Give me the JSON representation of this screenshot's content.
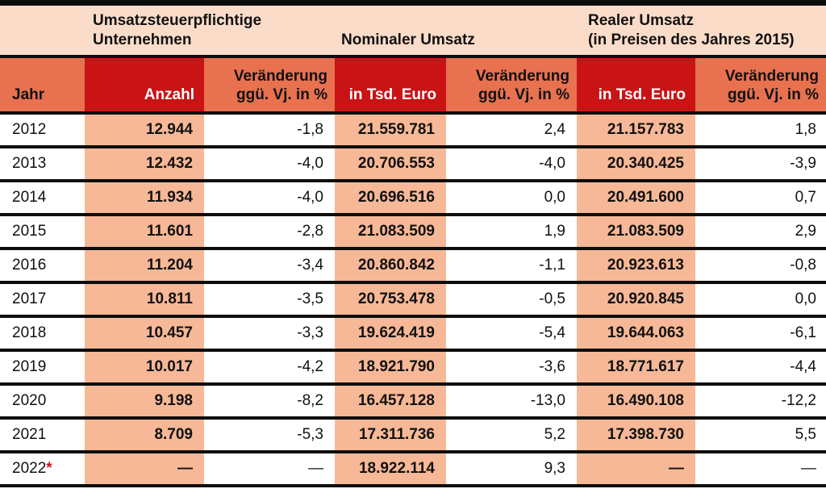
{
  "colors": {
    "band_peach": "#fbdcc9",
    "header_salmon": "#e8714f",
    "header_red": "#c91315",
    "highlight_salmon": "#f6b896",
    "rule_black": "#0d0d0d",
    "text_black": "#111111",
    "text_white": "#ffffff",
    "asterisk_red": "#c91315"
  },
  "chart_data": {
    "type": "table",
    "group_headers": [
      "Umsatzsteuerpflichtige\nUnternehmen",
      "Nominaler Umsatz",
      "Realer Umsatz\n(in Preisen des Jahres 2015)"
    ],
    "columns": [
      "Jahr",
      "Anzahl",
      "Veränderung\nggü. Vj. in %",
      "in Tsd. Euro",
      "Veränderung\nggü. Vj. in %",
      "in Tsd. Euro",
      "Veränderung\nggü. Vj. in %"
    ],
    "rows": [
      {
        "jahr": "2012",
        "marker": "",
        "anzahl": "12.944",
        "anzahl_vj": "-1,8",
        "nominal": "21.559.781",
        "nominal_vj": "2,4",
        "real": "21.157.783",
        "real_vj": "1,8"
      },
      {
        "jahr": "2013",
        "marker": "",
        "anzahl": "12.432",
        "anzahl_vj": "-4,0",
        "nominal": "20.706.553",
        "nominal_vj": "-4,0",
        "real": "20.340.425",
        "real_vj": "-3,9"
      },
      {
        "jahr": "2014",
        "marker": "",
        "anzahl": "11.934",
        "anzahl_vj": "-4,0",
        "nominal": "20.696.516",
        "nominal_vj": "0,0",
        "real": "20.491.600",
        "real_vj": "0,7"
      },
      {
        "jahr": "2015",
        "marker": "",
        "anzahl": "11.601",
        "anzahl_vj": "-2,8",
        "nominal": "21.083.509",
        "nominal_vj": "1,9",
        "real": "21.083.509",
        "real_vj": "2,9"
      },
      {
        "jahr": "2016",
        "marker": "",
        "anzahl": "11.204",
        "anzahl_vj": "-3,4",
        "nominal": "20.860.842",
        "nominal_vj": "-1,1",
        "real": "20.923.613",
        "real_vj": "-0,8"
      },
      {
        "jahr": "2017",
        "marker": "",
        "anzahl": "10.811",
        "anzahl_vj": "-3,5",
        "nominal": "20.753.478",
        "nominal_vj": "-0,5",
        "real": "20.920.845",
        "real_vj": "0,0"
      },
      {
        "jahr": "2018",
        "marker": "",
        "anzahl": "10.457",
        "anzahl_vj": "-3,3",
        "nominal": "19.624.419",
        "nominal_vj": "-5,4",
        "real": "19.644.063",
        "real_vj": "-6,1"
      },
      {
        "jahr": "2019",
        "marker": "",
        "anzahl": "10.017",
        "anzahl_vj": "-4,2",
        "nominal": "18.921.790",
        "nominal_vj": "-3,6",
        "real": "18.771.617",
        "real_vj": "-4,4"
      },
      {
        "jahr": "2020",
        "marker": "",
        "anzahl": "9.198",
        "anzahl_vj": "-8,2",
        "nominal": "16.457.128",
        "nominal_vj": "-13,0",
        "real": "16.490.108",
        "real_vj": "-12,2"
      },
      {
        "jahr": "2021",
        "marker": "",
        "anzahl": "8.709",
        "anzahl_vj": "-5,3",
        "nominal": "17.311.736",
        "nominal_vj": "5,2",
        "real": "17.398.730",
        "real_vj": "5,5"
      },
      {
        "jahr": "2022",
        "marker": "*",
        "anzahl": "—",
        "anzahl_vj": "—",
        "nominal": "18.922.114",
        "nominal_vj": "9,3",
        "real": "—",
        "real_vj": "—"
      }
    ]
  }
}
